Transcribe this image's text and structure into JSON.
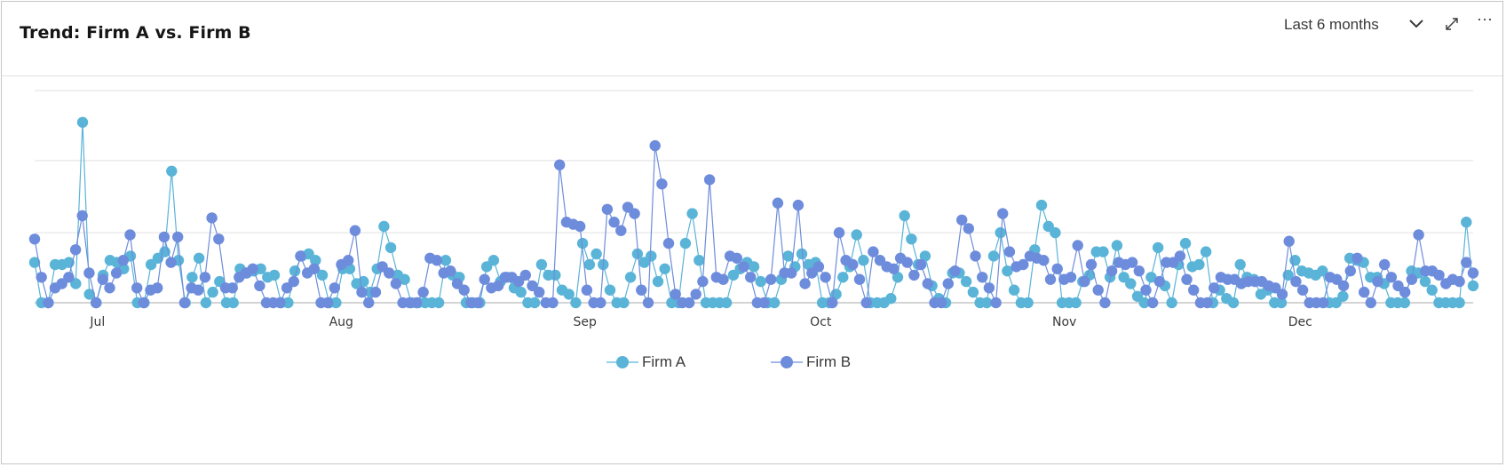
{
  "header": {
    "title": "Trend: Firm A vs. Firm B",
    "range_label": "Last 6 months",
    "icons": [
      "chevron-down-icon",
      "expand-icon",
      "overflow-menu-icon"
    ],
    "more_label": "···"
  },
  "legend": {
    "items": [
      {
        "name": "Firm A",
        "color": "#5ab4d7"
      },
      {
        "name": "Firm B",
        "color": "#6e8cdc"
      }
    ]
  },
  "chart_data": {
    "type": "line",
    "x_ticks": [
      "Jul",
      "Aug",
      "Sep",
      "Oct",
      "Nov",
      "Dec"
    ],
    "xlim": [
      "2022-06-23",
      "2022-12-23"
    ],
    "ylim": [
      0,
      100
    ],
    "grid": true,
    "legend_position": "bottom",
    "series": [
      {
        "name": "Firm A",
        "color": "#5ab4d7",
        "values": [
          19,
          0,
          0,
          18,
          18,
          19,
          9,
          85,
          4,
          0,
          13,
          20,
          19,
          16,
          22,
          0,
          0,
          18,
          21,
          24,
          62,
          20,
          0,
          12,
          21,
          0,
          5,
          10,
          0,
          0,
          16,
          14,
          15,
          16,
          12,
          13,
          0,
          0,
          15,
          22,
          23,
          20,
          13,
          0,
          0,
          16,
          16,
          9,
          10,
          5,
          16,
          36,
          26,
          13,
          11,
          0,
          0,
          0,
          0,
          0,
          20,
          13,
          12,
          0,
          0,
          0,
          17,
          20,
          10,
          12,
          7,
          5,
          0,
          0,
          18,
          13,
          13,
          6,
          4,
          0,
          28,
          18,
          23,
          18,
          6,
          0,
          0,
          12,
          23,
          19,
          22,
          10,
          16,
          0,
          0,
          28,
          42,
          20,
          0,
          0,
          0,
          0,
          13,
          16,
          19,
          17,
          10,
          0,
          0,
          11,
          22,
          17,
          23,
          18,
          19,
          0,
          0,
          4,
          12,
          17,
          32,
          20,
          0,
          0,
          0,
          2,
          12,
          41,
          30,
          18,
          22,
          8,
          2,
          0,
          14,
          14,
          10,
          5,
          0,
          0,
          22,
          33,
          15,
          6,
          0,
          0,
          25,
          46,
          36,
          33,
          0,
          0,
          0,
          10,
          13,
          24,
          24,
          12,
          27,
          12,
          9,
          3,
          0,
          12,
          26,
          8,
          0,
          18,
          28,
          17,
          18,
          24,
          0,
          6,
          2,
          0,
          18,
          12,
          11,
          4,
          6,
          0,
          0,
          13,
          20,
          15,
          14,
          13,
          15,
          0,
          0,
          3,
          21,
          20,
          19,
          12,
          12,
          9,
          0,
          0,
          0,
          15,
          14,
          10,
          6,
          0,
          0,
          0,
          0,
          38,
          8
        ],
        "name_hidden": false
      },
      {
        "name": "Firm B",
        "color": "#6e8cdc",
        "values": [
          30,
          12,
          0,
          7,
          9,
          12,
          25,
          41,
          14,
          0,
          11,
          7,
          14,
          20,
          32,
          7,
          0,
          6,
          7,
          31,
          19,
          31,
          0,
          7,
          6,
          12,
          40,
          30,
          7,
          7,
          12,
          14,
          16,
          8,
          0,
          0,
          0,
          7,
          10,
          22,
          14,
          16,
          0,
          0,
          7,
          18,
          20,
          34,
          5,
          0,
          5,
          17,
          14,
          9,
          0,
          0,
          0,
          5,
          21,
          20,
          14,
          15,
          9,
          6,
          0,
          0,
          11,
          7,
          8,
          12,
          12,
          10,
          13,
          8,
          5,
          0,
          0,
          65,
          38,
          37,
          36,
          6,
          0,
          0,
          44,
          38,
          34,
          45,
          42,
          6,
          0,
          74,
          56,
          28,
          4,
          0,
          0,
          4,
          10,
          58,
          12,
          11,
          22,
          21,
          17,
          12,
          0,
          0,
          11,
          47,
          14,
          14,
          46,
          9,
          14,
          17,
          12,
          0,
          33,
          20,
          18,
          11,
          0,
          24,
          20,
          17,
          16,
          21,
          19,
          13,
          18,
          9,
          0,
          0,
          9,
          15,
          39,
          35,
          22,
          12,
          7,
          0,
          42,
          24,
          17,
          18,
          22,
          21,
          20,
          11,
          16,
          11,
          12,
          27,
          10,
          18,
          6,
          0,
          15,
          19,
          18,
          19,
          15,
          6,
          0,
          10,
          19,
          19,
          22,
          11,
          6,
          0,
          0,
          7,
          12,
          11,
          11,
          9,
          10,
          10,
          10,
          8,
          7,
          4,
          29,
          10,
          6,
          0,
          0,
          0,
          12,
          11,
          8,
          15,
          21,
          5,
          0,
          10,
          18,
          12,
          8,
          5,
          11,
          32,
          15,
          15,
          13,
          9,
          11,
          10,
          19,
          14
        ]
      }
    ]
  }
}
